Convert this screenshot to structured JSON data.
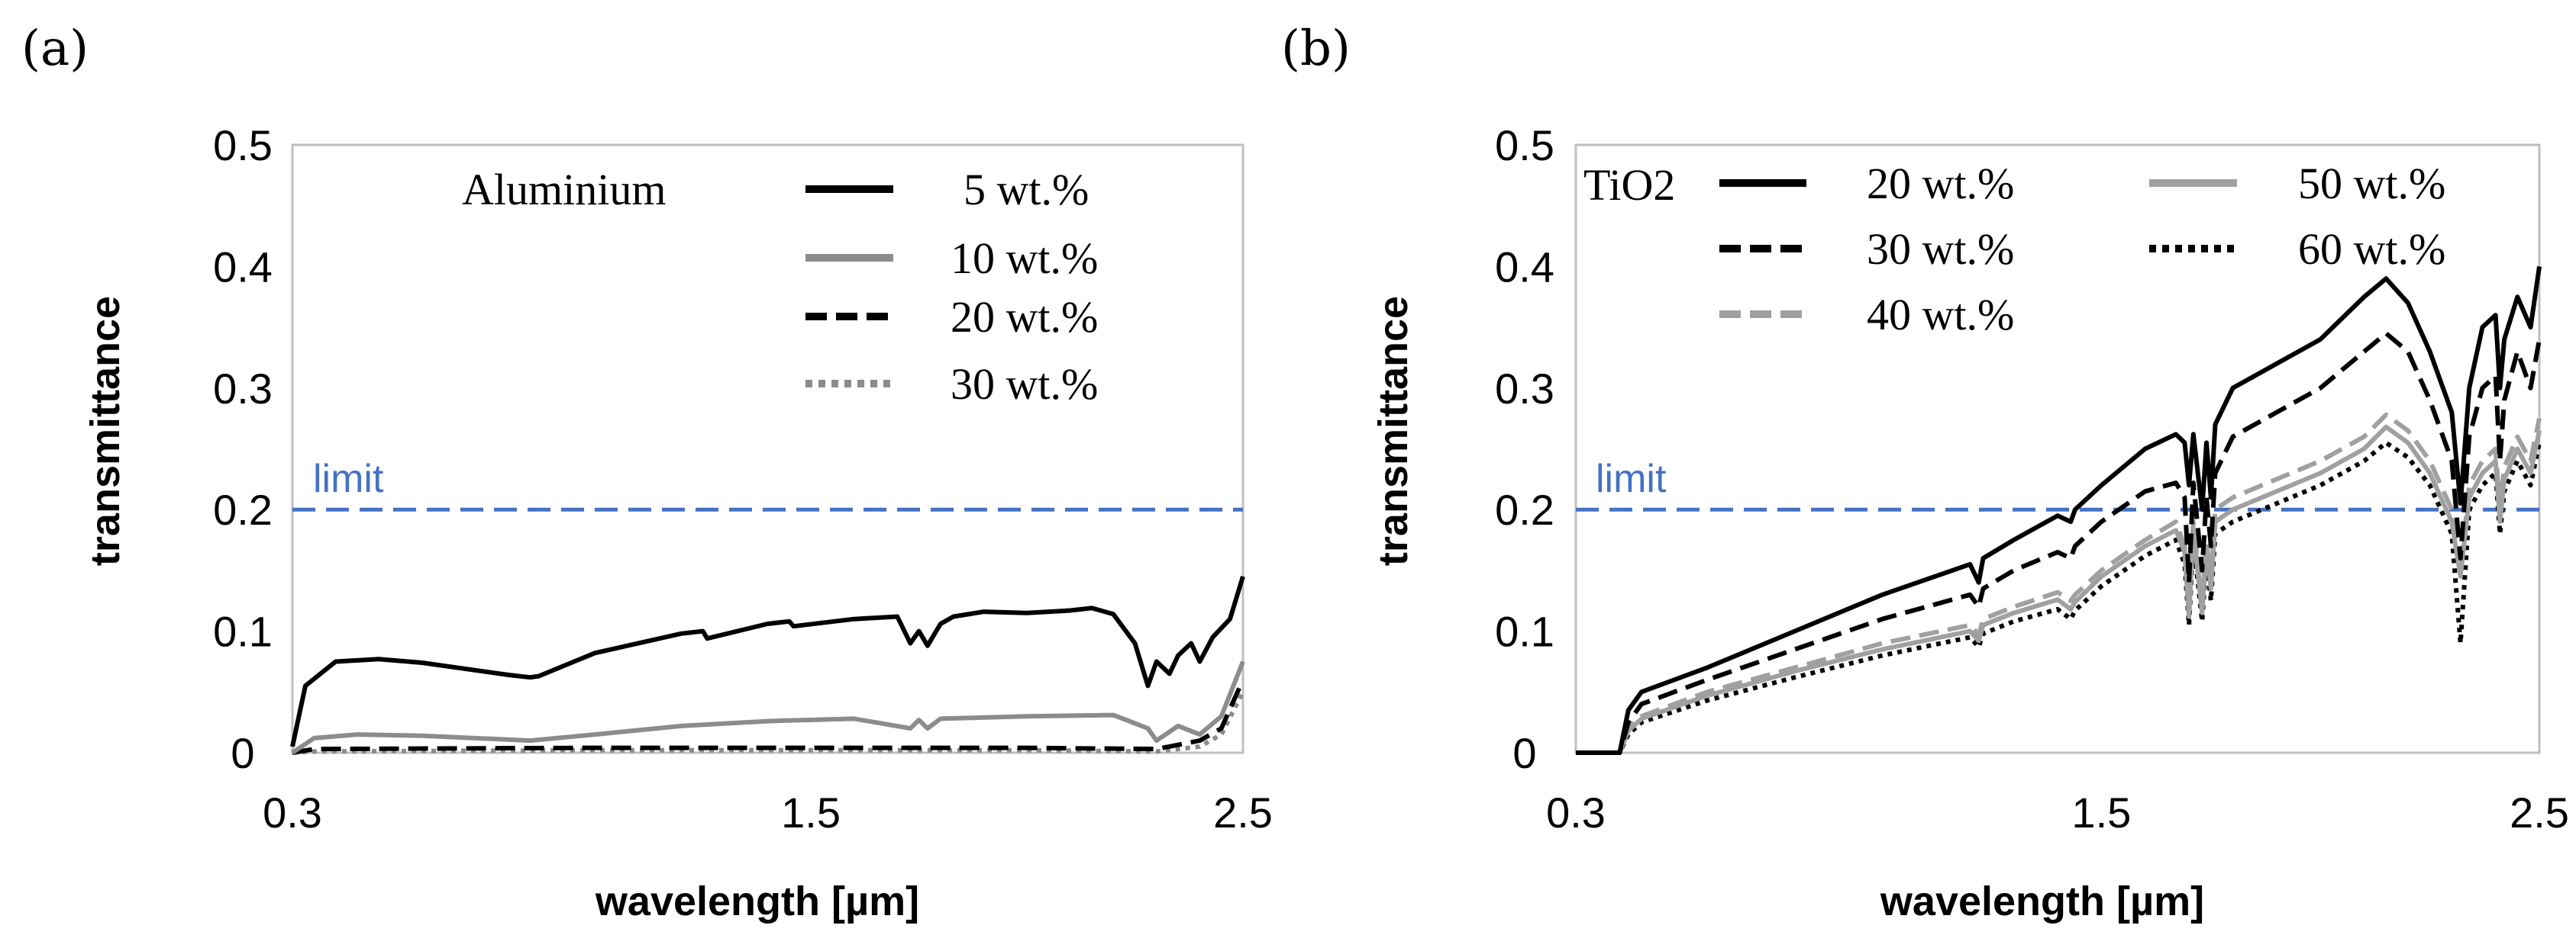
{
  "chart_data": [
    {
      "panel": "(a)",
      "type": "line",
      "title": "",
      "xlabel": "wavelength [µm]",
      "ylabel": "transmittance",
      "xlim": [
        0.3,
        2.5
      ],
      "ylim": [
        0,
        0.5
      ],
      "xticks": [
        "0.3",
        "1.5",
        "2.5"
      ],
      "yticks": [
        "0",
        "0.1",
        "0.2",
        "0.3",
        "0.4",
        "0.5"
      ],
      "legend_title": "Aluminium",
      "limit": {
        "label": "limit",
        "value": 0.2,
        "color": "#4472C4"
      },
      "series": [
        {
          "name": "5 wt.%",
          "color": "#000000",
          "dash": "solid",
          "x": [
            0.3,
            0.33,
            0.4,
            0.5,
            0.6,
            0.8,
            0.85,
            0.87,
            1.0,
            1.2,
            1.25,
            1.26,
            1.4,
            1.45,
            1.46,
            1.6,
            1.7,
            1.73,
            1.75,
            1.77,
            1.8,
            1.83,
            1.9,
            2.0,
            2.1,
            2.15,
            2.2,
            2.25,
            2.28,
            2.3,
            2.33,
            2.35,
            2.38,
            2.4,
            2.43,
            2.47,
            2.5
          ],
          "y": [
            0.005,
            0.055,
            0.075,
            0.077,
            0.074,
            0.064,
            0.062,
            0.063,
            0.082,
            0.098,
            0.1,
            0.094,
            0.106,
            0.108,
            0.104,
            0.11,
            0.112,
            0.09,
            0.1,
            0.088,
            0.106,
            0.112,
            0.116,
            0.115,
            0.117,
            0.119,
            0.114,
            0.09,
            0.055,
            0.075,
            0.065,
            0.08,
            0.09,
            0.075,
            0.095,
            0.11,
            0.145
          ]
        },
        {
          "name": "10 wt.%",
          "color": "#8C8C8C",
          "dash": "solid",
          "x": [
            0.3,
            0.35,
            0.45,
            0.6,
            0.85,
            1.0,
            1.2,
            1.4,
            1.6,
            1.73,
            1.75,
            1.77,
            1.8,
            2.0,
            2.2,
            2.28,
            2.3,
            2.35,
            2.4,
            2.45,
            2.5
          ],
          "y": [
            0.0,
            0.012,
            0.015,
            0.014,
            0.01,
            0.015,
            0.022,
            0.026,
            0.028,
            0.02,
            0.027,
            0.02,
            0.028,
            0.03,
            0.031,
            0.02,
            0.01,
            0.022,
            0.015,
            0.03,
            0.075
          ]
        },
        {
          "name": "20 wt.%",
          "color": "#000000",
          "dash": "dashed",
          "x": [
            0.3,
            0.35,
            1.0,
            1.5,
            2.0,
            2.3,
            2.4,
            2.45,
            2.5
          ],
          "y": [
            0.0,
            0.003,
            0.004,
            0.004,
            0.004,
            0.003,
            0.01,
            0.02,
            0.06
          ]
        },
        {
          "name": "30 wt.%",
          "color": "#8C8C8C",
          "dash": "dotted",
          "x": [
            0.3,
            0.35,
            1.0,
            1.5,
            2.0,
            2.3,
            2.4,
            2.45,
            2.5
          ],
          "y": [
            0.0,
            0.001,
            0.002,
            0.002,
            0.002,
            0.001,
            0.005,
            0.015,
            0.05
          ]
        }
      ]
    },
    {
      "panel": "(b)",
      "type": "line",
      "title": "",
      "xlabel": "wavelength [µm]",
      "ylabel": "transmittance",
      "xlim": [
        0.3,
        2.5
      ],
      "ylim": [
        0,
        0.5
      ],
      "xticks": [
        "0.3",
        "1.5",
        "2.5"
      ],
      "yticks": [
        "0",
        "0.1",
        "0.2",
        "0.3",
        "0.4",
        "0.5"
      ],
      "legend_title": "TiO2",
      "limit": {
        "label": "limit",
        "value": 0.2,
        "color": "#4472C4"
      },
      "series": [
        {
          "name": "20 wt.%",
          "color": "#000000",
          "dash": "solid",
          "x": [
            0.3,
            0.4,
            0.42,
            0.45,
            0.6,
            0.8,
            1.0,
            1.2,
            1.22,
            1.23,
            1.3,
            1.4,
            1.43,
            1.44,
            1.5,
            1.6,
            1.67,
            1.69,
            1.7,
            1.71,
            1.73,
            1.74,
            1.75,
            1.76,
            1.8,
            2.0,
            2.1,
            2.15,
            2.2,
            2.25,
            2.3,
            2.32,
            2.34,
            2.37,
            2.4,
            2.41,
            2.42,
            2.45,
            2.48,
            2.5
          ],
          "y": [
            0.0,
            0.0,
            0.035,
            0.05,
            0.07,
            0.1,
            0.13,
            0.155,
            0.14,
            0.16,
            0.175,
            0.195,
            0.19,
            0.2,
            0.22,
            0.25,
            0.262,
            0.255,
            0.22,
            0.262,
            0.2,
            0.255,
            0.21,
            0.27,
            0.3,
            0.34,
            0.375,
            0.39,
            0.37,
            0.33,
            0.28,
            0.205,
            0.3,
            0.35,
            0.36,
            0.3,
            0.34,
            0.375,
            0.35,
            0.4
          ]
        },
        {
          "name": "30 wt.%",
          "color": "#000000",
          "dash": "dashed",
          "x": [
            0.3,
            0.4,
            0.42,
            0.45,
            0.6,
            0.8,
            1.0,
            1.2,
            1.22,
            1.23,
            1.3,
            1.4,
            1.43,
            1.44,
            1.5,
            1.6,
            1.67,
            1.69,
            1.7,
            1.71,
            1.73,
            1.74,
            1.75,
            1.76,
            1.8,
            2.0,
            2.1,
            2.15,
            2.2,
            2.25,
            2.3,
            2.32,
            2.34,
            2.37,
            2.4,
            2.41,
            2.42,
            2.45,
            2.48,
            2.5
          ],
          "y": [
            0.0,
            0.0,
            0.025,
            0.04,
            0.06,
            0.085,
            0.11,
            0.13,
            0.12,
            0.135,
            0.15,
            0.165,
            0.16,
            0.17,
            0.19,
            0.215,
            0.222,
            0.21,
            0.14,
            0.222,
            0.15,
            0.21,
            0.17,
            0.23,
            0.26,
            0.3,
            0.33,
            0.345,
            0.33,
            0.29,
            0.24,
            0.16,
            0.26,
            0.3,
            0.31,
            0.24,
            0.29,
            0.33,
            0.3,
            0.34
          ]
        },
        {
          "name": "40 wt.%",
          "color": "#A0A0A0",
          "dash": "dashed",
          "x": [
            0.3,
            0.4,
            0.42,
            0.45,
            0.6,
            0.8,
            1.0,
            1.2,
            1.22,
            1.23,
            1.3,
            1.4,
            1.43,
            1.44,
            1.5,
            1.6,
            1.67,
            1.69,
            1.7,
            1.71,
            1.73,
            1.74,
            1.75,
            1.76,
            1.8,
            2.0,
            2.1,
            2.15,
            2.2,
            2.25,
            2.3,
            2.32,
            2.34,
            2.37,
            2.4,
            2.41,
            2.42,
            2.45,
            2.48,
            2.5
          ],
          "y": [
            0.0,
            0.0,
            0.02,
            0.03,
            0.05,
            0.07,
            0.09,
            0.105,
            0.097,
            0.11,
            0.12,
            0.132,
            0.125,
            0.13,
            0.15,
            0.175,
            0.19,
            0.17,
            0.12,
            0.19,
            0.12,
            0.175,
            0.14,
            0.2,
            0.21,
            0.24,
            0.26,
            0.278,
            0.265,
            0.24,
            0.2,
            0.15,
            0.22,
            0.24,
            0.25,
            0.2,
            0.235,
            0.26,
            0.24,
            0.275
          ]
        },
        {
          "name": "50 wt.%",
          "color": "#A0A0A0",
          "dash": "solid",
          "x": [
            0.3,
            0.4,
            0.42,
            0.45,
            0.6,
            0.8,
            1.0,
            1.2,
            1.22,
            1.23,
            1.3,
            1.4,
            1.43,
            1.44,
            1.5,
            1.6,
            1.67,
            1.69,
            1.7,
            1.71,
            1.73,
            1.74,
            1.75,
            1.76,
            1.8,
            2.0,
            2.1,
            2.15,
            2.2,
            2.25,
            2.3,
            2.32,
            2.34,
            2.37,
            2.4,
            2.41,
            2.42,
            2.45,
            2.48,
            2.5
          ],
          "y": [
            0.0,
            0.0,
            0.018,
            0.028,
            0.047,
            0.067,
            0.085,
            0.1,
            0.092,
            0.105,
            0.115,
            0.126,
            0.118,
            0.124,
            0.145,
            0.17,
            0.183,
            0.165,
            0.112,
            0.183,
            0.115,
            0.168,
            0.135,
            0.19,
            0.2,
            0.23,
            0.25,
            0.268,
            0.255,
            0.23,
            0.19,
            0.145,
            0.21,
            0.23,
            0.24,
            0.19,
            0.225,
            0.25,
            0.23,
            0.265
          ]
        },
        {
          "name": "60 wt.%",
          "color": "#000000",
          "dash": "dotted",
          "x": [
            0.3,
            0.4,
            0.42,
            0.45,
            0.6,
            0.8,
            1.0,
            1.2,
            1.22,
            1.23,
            1.3,
            1.4,
            1.43,
            1.44,
            1.5,
            1.6,
            1.67,
            1.69,
            1.7,
            1.71,
            1.73,
            1.74,
            1.75,
            1.76,
            1.8,
            2.0,
            2.1,
            2.15,
            2.2,
            2.25,
            2.3,
            2.32,
            2.34,
            2.37,
            2.4,
            2.41,
            2.42,
            2.45,
            2.48,
            2.5
          ],
          "y": [
            0.0,
            0.0,
            0.015,
            0.025,
            0.043,
            0.062,
            0.08,
            0.095,
            0.087,
            0.098,
            0.108,
            0.118,
            0.11,
            0.117,
            0.137,
            0.162,
            0.175,
            0.155,
            0.105,
            0.175,
            0.108,
            0.16,
            0.125,
            0.18,
            0.19,
            0.22,
            0.24,
            0.255,
            0.243,
            0.22,
            0.18,
            0.09,
            0.2,
            0.22,
            0.23,
            0.18,
            0.215,
            0.24,
            0.22,
            0.255
          ]
        }
      ]
    }
  ]
}
